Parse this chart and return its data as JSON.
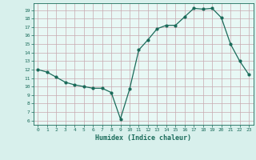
{
  "x": [
    0,
    1,
    2,
    3,
    4,
    5,
    6,
    7,
    8,
    9,
    10,
    11,
    12,
    13,
    14,
    15,
    16,
    17,
    18,
    19,
    20,
    21,
    22,
    23
  ],
  "y": [
    12.0,
    11.7,
    11.1,
    10.5,
    10.2,
    10.0,
    9.8,
    9.8,
    9.3,
    6.2,
    9.7,
    14.3,
    15.5,
    16.8,
    17.2,
    17.2,
    18.2,
    19.2,
    19.1,
    19.2,
    18.1,
    15.0,
    13.0,
    11.4
  ],
  "line_color": "#1a6b5a",
  "bg_color": "#d8f0ec",
  "plot_bg_color": "#e8f8f5",
  "grid_color": "#c8a8b0",
  "xlabel": "Humidex (Indice chaleur)",
  "ylabel_ticks": [
    6,
    7,
    8,
    9,
    10,
    11,
    12,
    13,
    14,
    15,
    16,
    17,
    18,
    19
  ],
  "ylim": [
    5.5,
    19.8
  ],
  "xlim": [
    -0.5,
    23.5
  ]
}
